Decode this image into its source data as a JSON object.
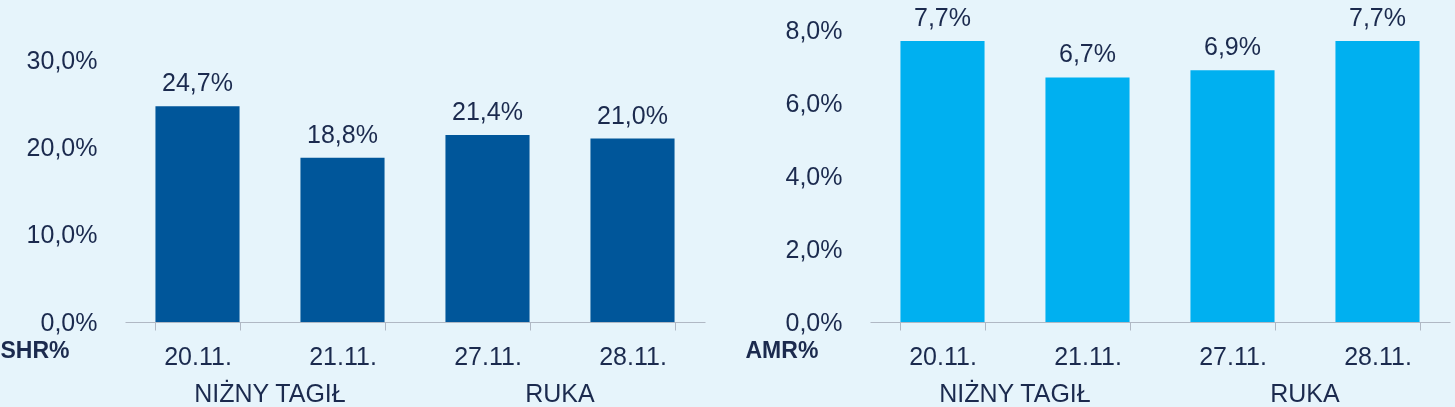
{
  "chart_data": [
    {
      "type": "bar",
      "xlabel": "SHR%",
      "categories": [
        "20.11.",
        "21.11.",
        "27.11.",
        "28.11."
      ],
      "values": [
        24.7,
        18.8,
        21.4,
        21.0
      ],
      "value_labels": [
        "24,7%",
        "18,8%",
        "21,4%",
        "21,0%"
      ],
      "color": "#00569a",
      "ylim": [
        0,
        30
      ],
      "yticks": [
        {
          "value": 0,
          "label": "0,0%"
        },
        {
          "value": 10,
          "label": "10,0%"
        },
        {
          "value": 20,
          "label": "20,0%"
        },
        {
          "value": 30,
          "label": "30,0%"
        }
      ],
      "annotations": [
        "NIŻNY TAGIŁ",
        "RUKA"
      ],
      "grid": false
    },
    {
      "type": "bar",
      "xlabel": "AMR%",
      "categories": [
        "20.11.",
        "21.11.",
        "27.11.",
        "28.11."
      ],
      "values": [
        7.7,
        6.7,
        6.9,
        7.7
      ],
      "value_labels": [
        "7,7%",
        "6,7%",
        "6,9%",
        "7,7%"
      ],
      "color": "#00b0f0",
      "ylim": [
        0,
        8
      ],
      "yticks": [
        {
          "value": 0,
          "label": "0,0%"
        },
        {
          "value": 2,
          "label": "2,0%"
        },
        {
          "value": 4,
          "label": "4,0%"
        },
        {
          "value": 6,
          "label": "6,0%"
        },
        {
          "value": 8,
          "label": "8,0%"
        }
      ],
      "annotations": [
        "NIŻNY TAGIŁ",
        "RUKA"
      ],
      "grid": false
    }
  ]
}
